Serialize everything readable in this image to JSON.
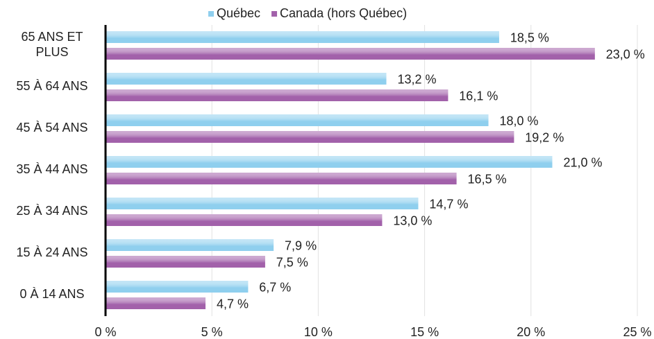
{
  "chart_data": {
    "type": "bar",
    "orientation": "horizontal",
    "categories": [
      "65 ANS ET PLUS",
      "55 À 64 ANS",
      "45 À 54 ANS",
      "35 À 44 ANS",
      "25 À 34 ANS",
      "15 À 24 ANS",
      "0 À 14 ANS"
    ],
    "series": [
      {
        "name": "Québec",
        "color": "#8fcfee",
        "values": [
          18.5,
          13.2,
          18.0,
          21.0,
          14.7,
          7.9,
          6.7
        ],
        "value_labels": [
          "18,5 %",
          "13,2 %",
          "18,0 %",
          "21,0 %",
          "14,7 %",
          "7,9 %",
          "6,7 %"
        ]
      },
      {
        "name": "Canada (hors Québec)",
        "color": "#a261aa",
        "values": [
          23.0,
          16.1,
          19.2,
          16.5,
          13.0,
          7.5,
          4.7
        ],
        "value_labels": [
          "23,0 %",
          "16,1 %",
          "19,2 %",
          "16,5 %",
          "13,0 %",
          "7,5 %",
          "4,7 %"
        ]
      }
    ],
    "xlim": [
      0,
      25
    ],
    "xticks": [
      {
        "value": 0,
        "label": "0 %"
      },
      {
        "value": 5,
        "label": "5 %"
      },
      {
        "value": 10,
        "label": "10 %"
      },
      {
        "value": 15,
        "label": "15 %"
      },
      {
        "value": 20,
        "label": "20 %"
      },
      {
        "value": 25,
        "label": "25 %"
      }
    ],
    "grid": true,
    "legend": "top"
  }
}
